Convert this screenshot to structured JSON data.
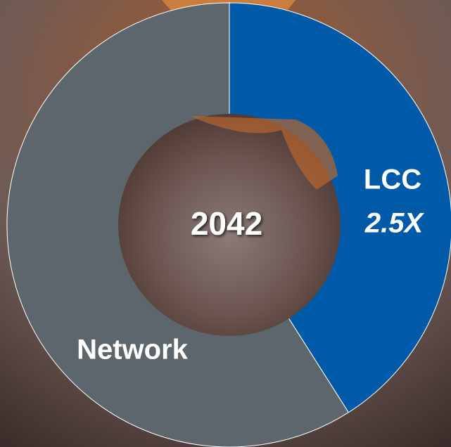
{
  "chart_data": {
    "type": "donut",
    "center_label": "2042",
    "categories": [
      "LCC",
      "Network"
    ],
    "values": [
      41,
      59
    ],
    "colors": [
      "#005aa8",
      "#5e666d"
    ],
    "annotations": [
      "2.5X"
    ]
  }
}
